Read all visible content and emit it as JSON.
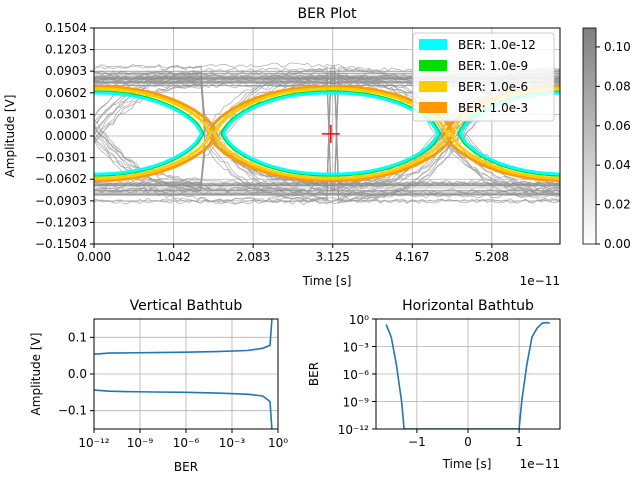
{
  "chart_data": [
    {
      "type": "eye-diagram",
      "title": "BER Plot",
      "xlabel": "Time [s]",
      "ylabel": "Amplitude [V]",
      "x_offset_label": "1e−11",
      "xlim": [
        0,
        6.1
      ],
      "ylim": [
        -0.1504,
        0.1504
      ],
      "x_ticks": [
        0,
        1.042,
        2.083,
        3.125,
        4.167,
        5.208
      ],
      "x_tick_labels": [
        "0.000",
        "1.042",
        "2.083",
        "3.125",
        "4.167",
        "5.208"
      ],
      "y_ticks": [
        0.1504,
        0.1203,
        0.0903,
        0.0602,
        0.0301,
        0.0,
        -0.0301,
        -0.0602,
        -0.0903,
        -0.1203,
        -0.1504
      ],
      "y_tick_labels": [
        "0.1504",
        "0.1203",
        "0.0903",
        "0.0602",
        "0.0301",
        "0.0000",
        "−0.0301",
        "−0.0602",
        "−0.0903",
        "−0.1203",
        "−0.1504"
      ],
      "grid": true,
      "legend_position": "top-right",
      "eye_crossings": [
        -0.05,
        1.55,
        4.65
      ],
      "contours": [
        {
          "name": "BER: 1.0e-12",
          "color": "#00ffff",
          "eye_center": 3.1,
          "half_width": 1.4,
          "half_height": 0.055
        },
        {
          "name": "BER: 1.0e-9",
          "color": "#00dd00",
          "eye_center": 3.1,
          "half_width": 1.42,
          "half_height": 0.0565
        },
        {
          "name": "BER: 1.0e-6",
          "color": "#ffcc00",
          "eye_center": 3.1,
          "half_width": 1.52,
          "half_height": 0.061
        },
        {
          "name": "BER: 1.0e-3",
          "color": "#ff9900",
          "eye_center": 3.1,
          "half_width": 1.6,
          "half_height": 0.064
        }
      ],
      "marker": {
        "x": 3.1,
        "y": 0.003,
        "color": "#ff0000"
      },
      "colorbar": {
        "min": 0.0,
        "max": 0.1,
        "ticks": [
          0.0,
          0.02,
          0.04,
          0.06,
          0.08,
          0.1
        ],
        "tick_labels": [
          "0.00",
          "0.02",
          "0.04",
          "0.06",
          "0.08",
          "0.10"
        ]
      }
    },
    {
      "type": "line",
      "title": "Vertical Bathtub",
      "xlabel": "BER",
      "ylabel": "Amplitude [V]",
      "x_scale": "log",
      "xlim": [
        1e-12,
        1
      ],
      "ylim": [
        -0.15,
        0.15
      ],
      "x_ticks": [
        1e-12,
        1e-09,
        1e-06,
        0.001,
        1
      ],
      "x_tick_labels": [
        "10⁻¹²",
        "10⁻⁹",
        "10⁻⁶",
        "10⁻³",
        "10⁰"
      ],
      "y_ticks": [
        0.1,
        0.0,
        -0.1
      ],
      "y_tick_labels": [
        "0.1",
        "0.0",
        "−0.1"
      ],
      "grid": true,
      "series": [
        {
          "color": "#1f77b4",
          "points": [
            [
              1e-12,
              0.054
            ],
            [
              1e-11,
              0.057
            ],
            [
              1e-10,
              0.0575
            ],
            [
              1e-08,
              0.0585
            ],
            [
              1e-06,
              0.0595
            ],
            [
              0.0001,
              0.061
            ],
            [
              0.01,
              0.064
            ],
            [
              0.1,
              0.07
            ],
            [
              0.3,
              0.078
            ],
            [
              0.4,
              0.15
            ]
          ]
        },
        {
          "color": "#1f77b4",
          "points": [
            [
              1e-12,
              -0.044
            ],
            [
              1e-11,
              -0.047
            ],
            [
              1e-10,
              -0.048
            ],
            [
              1e-08,
              -0.049
            ],
            [
              1e-06,
              -0.05
            ],
            [
              0.0001,
              -0.052
            ],
            [
              0.01,
              -0.055
            ],
            [
              0.1,
              -0.06
            ],
            [
              0.3,
              -0.075
            ],
            [
              0.4,
              -0.15
            ]
          ]
        }
      ]
    },
    {
      "type": "line",
      "title": "Horizontal Bathtub",
      "xlabel": "Time [s]",
      "ylabel": "BER",
      "x_offset_label": "1e−11",
      "y_scale": "log",
      "xlim": [
        -1.8,
        1.8
      ],
      "ylim": [
        1e-12,
        1
      ],
      "x_ticks": [
        -1,
        0,
        1
      ],
      "x_tick_labels": [
        "−1",
        "0",
        "1"
      ],
      "y_ticks": [
        1,
        0.001,
        1e-06,
        1e-09,
        1e-12
      ],
      "y_tick_labels": [
        "10⁰",
        "10⁻³",
        "10⁻⁶",
        "10⁻⁹",
        "10⁻¹²"
      ],
      "grid": true,
      "series": [
        {
          "color": "#1f77b4",
          "points": [
            [
              -1.6,
              0.25
            ],
            [
              -1.5,
              0.01
            ],
            [
              -1.4,
              1e-05
            ],
            [
              -1.3,
              1e-09
            ],
            [
              -1.25,
              1e-12
            ],
            [
              1.0,
              1e-12
            ],
            [
              1.05,
              1e-09
            ],
            [
              1.15,
              1e-05
            ],
            [
              1.25,
              0.01
            ],
            [
              1.35,
              0.1
            ],
            [
              1.45,
              0.35
            ],
            [
              1.55,
              0.4
            ],
            [
              1.6,
              0.35
            ]
          ]
        }
      ]
    }
  ]
}
